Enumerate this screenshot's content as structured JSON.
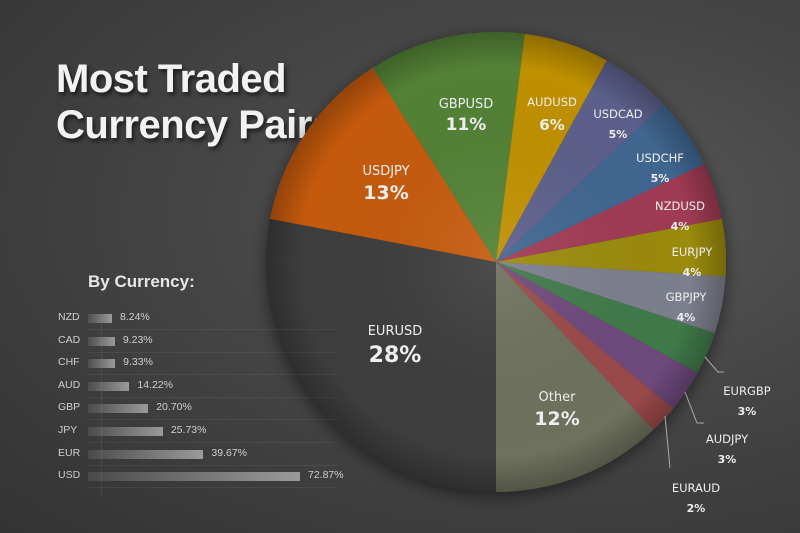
{
  "title": {
    "line1": "Most Traded",
    "line2": "Currency Pairs"
  },
  "by_currency": {
    "header": "By Currency:",
    "items": [
      {
        "label": "NZD",
        "value": "8.24%",
        "num": 8.24
      },
      {
        "label": "CAD",
        "value": "9.23%",
        "num": 9.23
      },
      {
        "label": "CHF",
        "value": "9.33%",
        "num": 9.33
      },
      {
        "label": "AUD",
        "value": "14.22%",
        "num": 14.22
      },
      {
        "label": "GBP",
        "value": "20.70%",
        "num": 20.7
      },
      {
        "label": "JPY",
        "value": "25.73%",
        "num": 25.73
      },
      {
        "label": "EUR",
        "value": "39.67%",
        "num": 39.67
      },
      {
        "label": "USD",
        "value": "72.87%",
        "num": 72.87
      }
    ]
  },
  "pie_labels": {
    "EURUSD": {
      "name": "EURUSD",
      "pct": "28%"
    },
    "USDJPY": {
      "name": "USDJPY",
      "pct": "13%"
    },
    "GBPUSD": {
      "name": "GBPUSD",
      "pct": "11%"
    },
    "AUDUSD": {
      "name": "AUDUSD",
      "pct": "6%"
    },
    "USDCAD": {
      "name": "USDCAD",
      "pct": "5%"
    },
    "USDCHF": {
      "name": "USDCHF",
      "pct": "5%"
    },
    "NZDUSD": {
      "name": "NZDUSD",
      "pct": "4%"
    },
    "EURJPY": {
      "name": "EURJPY",
      "pct": "4%"
    },
    "GBPJPY": {
      "name": "GBPJPY",
      "pct": "4%"
    },
    "EURGBP": {
      "name": "EURGBP",
      "pct": "3%"
    },
    "AUDJPY": {
      "name": "AUDJPY",
      "pct": "3%"
    },
    "EURAUD": {
      "name": "EURAUD",
      "pct": "2%"
    },
    "Other": {
      "name": "Other",
      "pct": "12%"
    }
  },
  "chart_data": [
    {
      "type": "pie",
      "title": "Most Traded Currency Pairs",
      "categories": [
        "EURUSD",
        "USDJPY",
        "GBPUSD",
        "AUDUSD",
        "USDCAD",
        "USDCHF",
        "NZDUSD",
        "EURJPY",
        "GBPJPY",
        "EURGBP",
        "AUDJPY",
        "EURAUD",
        "Other"
      ],
      "values": [
        28,
        13,
        11,
        6,
        5,
        5,
        4,
        4,
        4,
        3,
        3,
        2,
        12
      ],
      "colors": [
        "#3c3c3c",
        "#c55a11",
        "#538135",
        "#bf9000",
        "#5b5f8a",
        "#3f6690",
        "#a03a55",
        "#9a8a10",
        "#7c7f8c",
        "#3f7a4a",
        "#6e4a7c",
        "#9a4a4a",
        "#6e715c"
      ],
      "unit": "%"
    },
    {
      "type": "bar",
      "title": "By Currency:",
      "orientation": "horizontal",
      "categories": [
        "NZD",
        "CAD",
        "CHF",
        "AUD",
        "GBP",
        "JPY",
        "EUR",
        "USD"
      ],
      "values": [
        8.24,
        9.23,
        9.33,
        14.22,
        20.7,
        25.73,
        39.67,
        72.87
      ],
      "unit": "%",
      "grid": true
    }
  ]
}
